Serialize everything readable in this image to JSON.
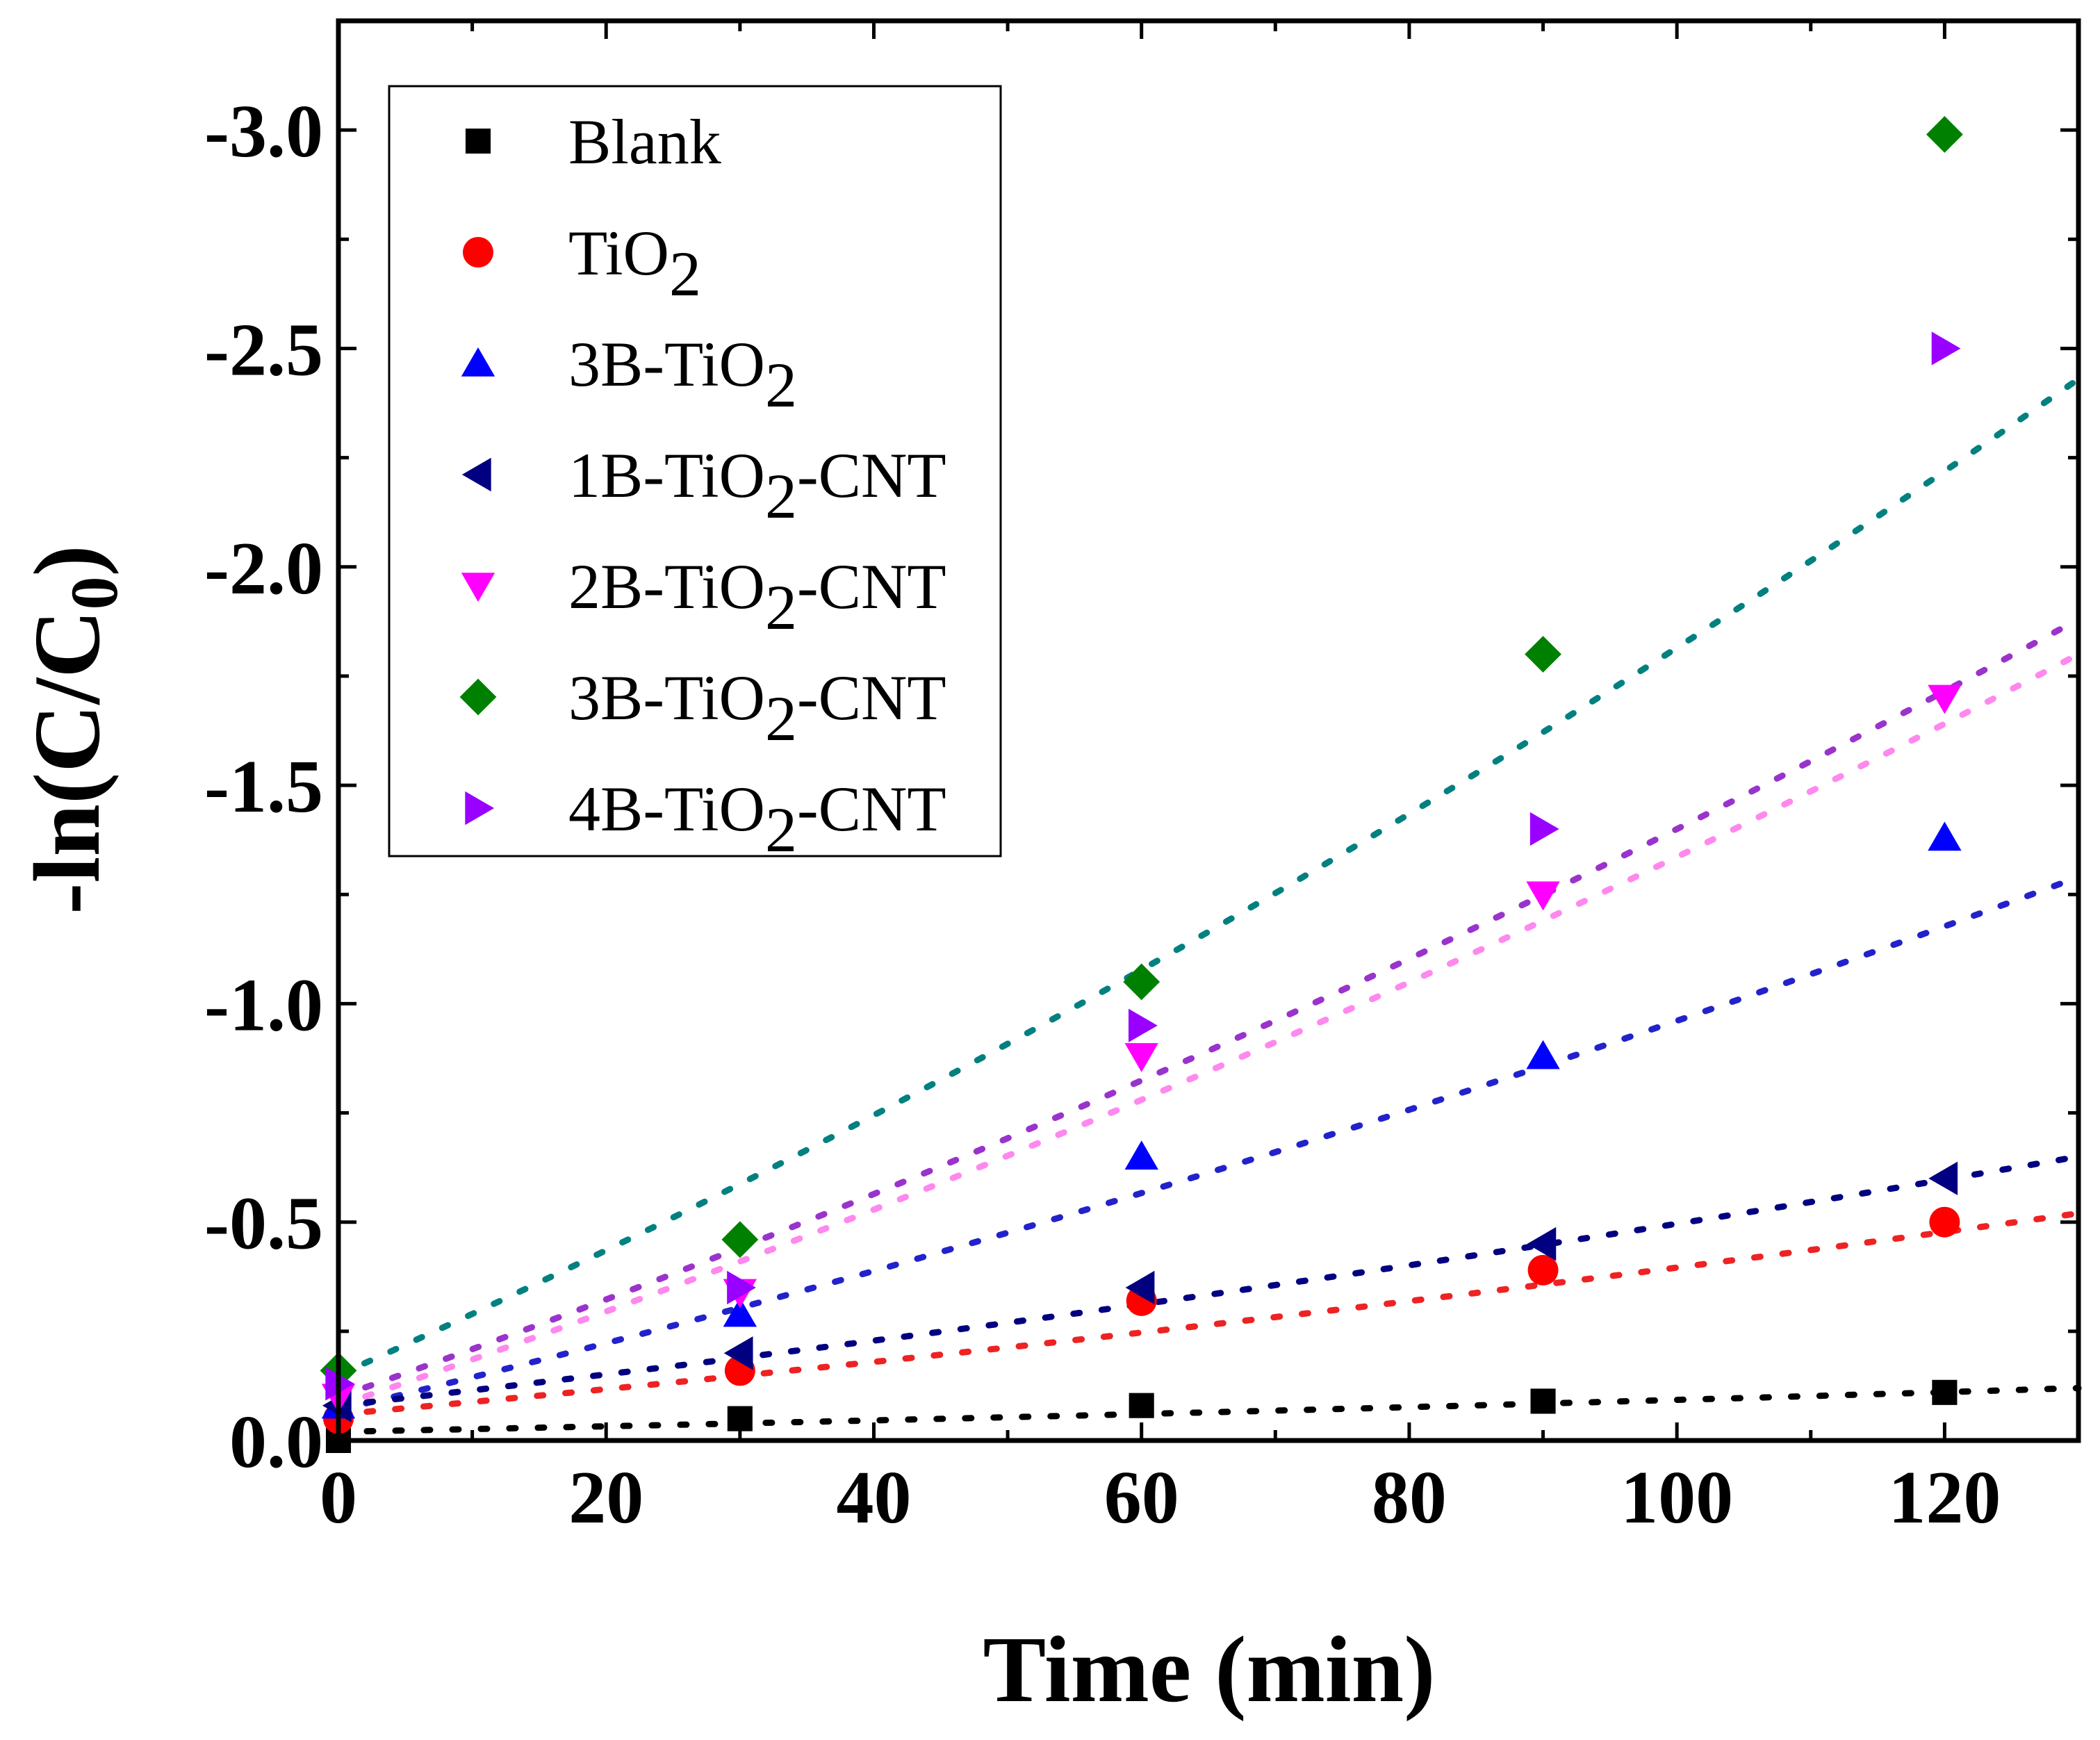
{
  "chart_data": {
    "type": "scatter",
    "title": "",
    "xlabel": "Time (min)",
    "ylabel": "-ln(C/C0)",
    "ylabel_main": "-ln(C/C",
    "ylabel_sub": "0",
    "ylabel_end": ")",
    "xlim": [
      0,
      130
    ],
    "ylim": [
      0,
      -3.25
    ],
    "x_ticks": [
      0,
      20,
      40,
      60,
      80,
      100,
      120
    ],
    "y_ticks": [
      0.0,
      -0.5,
      -1.0,
      -1.5,
      -2.0,
      -2.5,
      -3.0
    ],
    "x_tick_labels": [
      "0",
      "20",
      "40",
      "60",
      "80",
      "100",
      "120"
    ],
    "y_tick_labels": [
      "0.0",
      "-0.5",
      "-1.0",
      "-1.5",
      "-2.0",
      "-2.5",
      "-3.0"
    ],
    "legend_position": "top-left",
    "x": [
      0,
      30,
      60,
      90,
      120
    ],
    "series": [
      {
        "name": "Blank",
        "label_main": "Blank",
        "label_sub": "",
        "label_end": "",
        "marker": "square",
        "color": "#000000",
        "fit_color": "#000000",
        "values": [
          0.0,
          -0.05,
          -0.08,
          -0.09,
          -0.11
        ],
        "fit": [
          -0.02,
          -0.12
        ]
      },
      {
        "name": "TiO2",
        "label_main": "TiO",
        "label_sub": "2",
        "label_end": "",
        "marker": "circle",
        "color": "#ff0000",
        "fit_color": "#ee2222",
        "values": [
          -0.05,
          -0.16,
          -0.32,
          -0.39,
          -0.5
        ],
        "fit": [
          -0.06,
          -0.52
        ]
      },
      {
        "name": "3B-TiO2",
        "label_main": "3B-TiO",
        "label_sub": "2",
        "label_end": "",
        "marker": "triangle-up",
        "color": "#0000ff",
        "fit_color": "#2222cc",
        "values": [
          -0.08,
          -0.29,
          -0.65,
          -0.88,
          -1.38
        ],
        "fit": [
          -0.07,
          -1.29
        ]
      },
      {
        "name": "1B-TiO2-CNT",
        "label_main": "1B-TiO",
        "label_sub": "2",
        "label_end": "-CNT",
        "marker": "triangle-left",
        "color": "#000080",
        "fit_color": "#000080",
        "values": [
          -0.08,
          -0.2,
          -0.35,
          -0.45,
          -0.6
        ],
        "fit": [
          -0.08,
          -0.65
        ]
      },
      {
        "name": "2B-TiO2-CNT",
        "label_main": "2B-TiO",
        "label_sub": "2",
        "label_end": "-CNT",
        "marker": "triangle-down",
        "color": "#ff00ff",
        "fit_color": "#ff88ee",
        "values": [
          -0.1,
          -0.34,
          -0.88,
          -1.25,
          -1.7
        ],
        "fit": [
          -0.08,
          -1.8
        ]
      },
      {
        "name": "3B-TiO2-CNT",
        "label_main": "3B-TiO",
        "label_sub": "2",
        "label_end": "-CNT",
        "marker": "diamond",
        "color": "#008000",
        "fit_color": "#008080",
        "values": [
          -0.16,
          -0.46,
          -1.05,
          -1.8,
          -2.99
        ],
        "fit": [
          -0.15,
          -2.43
        ]
      },
      {
        "name": "4B-TiO2-CNT",
        "label_main": "4B-TiO",
        "label_sub": "2",
        "label_end": "-CNT",
        "marker": "triangle-right",
        "color": "#9900ff",
        "fit_color": "#9933cc",
        "values": [
          -0.13,
          -0.35,
          -0.95,
          -1.4,
          -2.5
        ],
        "fit": [
          -0.1,
          -1.88
        ]
      }
    ]
  }
}
